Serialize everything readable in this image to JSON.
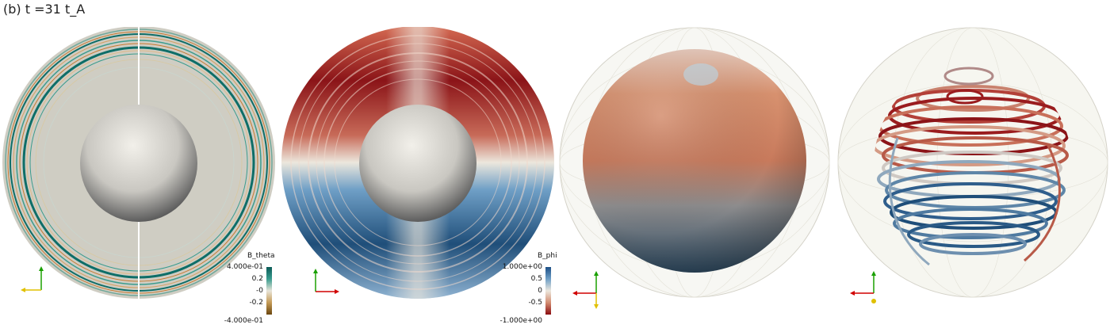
{
  "figure": {
    "label": "(b) t =31 t_A"
  },
  "panels": [
    {
      "name": "b-theta-slice",
      "colorbar": {
        "title": "B_theta",
        "ticks": [
          "4.000e-01",
          "0.2",
          "-0",
          "-0.2",
          "-4.000e-01"
        ],
        "colors": [
          "#0b5b57",
          "#3a9c8f",
          "#e8e4d8",
          "#c49a55",
          "#6b4710"
        ]
      }
    },
    {
      "name": "b-phi-slice",
      "colorbar": {
        "title": "B_phi",
        "ticks": [
          "1.000e+00",
          "0.5",
          "0",
          "-0.5",
          "-1.000e+00"
        ],
        "colors": [
          "#1c4f86",
          "#6f9fc6",
          "#ece7dd",
          "#d38c70",
          "#8b0c10"
        ]
      }
    },
    {
      "name": "inner-sphere-surface"
    },
    {
      "name": "field-lines"
    }
  ],
  "colors": {
    "red_dark": "#8b1418",
    "blue_dark": "#1f4e79",
    "shell_gray": "#d4d2c8",
    "teal": "#0e6e68",
    "orange": "#c8782e"
  },
  "axes_icons": {
    "x_color": "#d00000",
    "y_color": "#1aa000",
    "z_color": "#e0c000"
  }
}
